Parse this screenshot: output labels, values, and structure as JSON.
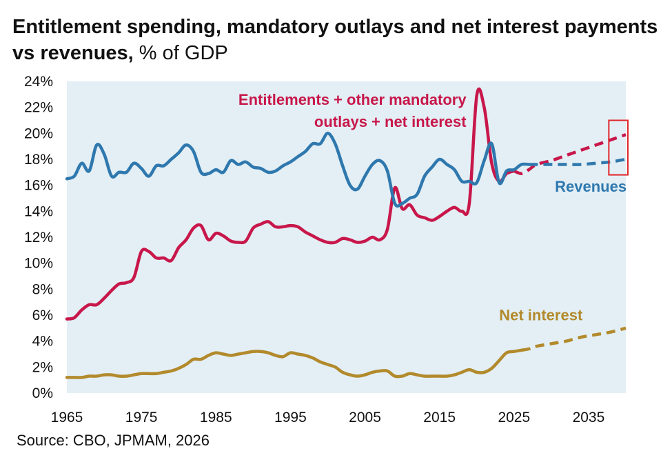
{
  "title": {
    "main": "Entitlement spending, mandatory outlays and net interest payments vs revenues,",
    "unit": "% of GDP"
  },
  "source": "Source: CBO, JPMAM, 2026",
  "colors": {
    "plot_bg": "#e3eff5",
    "mandatory": "#c8174a",
    "revenues": "#2f78ae",
    "net_interest": "#b28a2c",
    "highlight_box": "#e0262b"
  },
  "chart_data": {
    "type": "line",
    "xlim": [
      1965,
      2040
    ],
    "ylim": [
      0,
      24
    ],
    "x_ticks": [
      "1965",
      "1975",
      "1985",
      "1995",
      "2005",
      "2015",
      "2025",
      "2035"
    ],
    "y_ticks": [
      "0%",
      "2%",
      "4%",
      "6%",
      "8%",
      "10%",
      "12%",
      "14%",
      "16%",
      "18%",
      "20%",
      "22%",
      "24%"
    ],
    "y_tick_values": [
      0,
      2,
      4,
      6,
      8,
      10,
      12,
      14,
      16,
      18,
      20,
      22,
      24
    ],
    "grid": false,
    "annotations": {
      "mandatory": [
        "Entitlements + other mandatory",
        "outlays + net interest"
      ],
      "revenues": "Revenues",
      "net_interest": "Net interest"
    },
    "highlight_box": {
      "x_range": [
        2038,
        2040
      ],
      "y_range": [
        16.8,
        21.0
      ]
    },
    "series": [
      {
        "key": "mandatory",
        "color": "#c8174a",
        "historical": [
          [
            1965,
            5.7
          ],
          [
            1966,
            5.8
          ],
          [
            1967,
            6.4
          ],
          [
            1968,
            6.8
          ],
          [
            1969,
            6.8
          ],
          [
            1970,
            7.3
          ],
          [
            1971,
            7.9
          ],
          [
            1972,
            8.4
          ],
          [
            1973,
            8.5
          ],
          [
            1974,
            8.9
          ],
          [
            1975,
            10.9
          ],
          [
            1976,
            10.9
          ],
          [
            1977,
            10.4
          ],
          [
            1978,
            10.4
          ],
          [
            1979,
            10.2
          ],
          [
            1980,
            11.2
          ],
          [
            1981,
            11.8
          ],
          [
            1982,
            12.7
          ],
          [
            1983,
            12.9
          ],
          [
            1984,
            11.8
          ],
          [
            1985,
            12.3
          ],
          [
            1986,
            12.1
          ],
          [
            1987,
            11.7
          ],
          [
            1988,
            11.6
          ],
          [
            1989,
            11.7
          ],
          [
            1990,
            12.7
          ],
          [
            1991,
            13.0
          ],
          [
            1992,
            13.2
          ],
          [
            1993,
            12.8
          ],
          [
            1994,
            12.8
          ],
          [
            1995,
            12.9
          ],
          [
            1996,
            12.8
          ],
          [
            1997,
            12.4
          ],
          [
            1998,
            12.1
          ],
          [
            1999,
            11.8
          ],
          [
            2000,
            11.6
          ],
          [
            2001,
            11.6
          ],
          [
            2002,
            11.9
          ],
          [
            2003,
            11.8
          ],
          [
            2004,
            11.6
          ],
          [
            2005,
            11.7
          ],
          [
            2006,
            12.0
          ],
          [
            2007,
            11.8
          ],
          [
            2008,
            12.6
          ],
          [
            2009,
            15.8
          ],
          [
            2010,
            14.2
          ],
          [
            2011,
            14.5
          ],
          [
            2012,
            13.7
          ],
          [
            2013,
            13.5
          ],
          [
            2014,
            13.3
          ],
          [
            2015,
            13.6
          ],
          [
            2016,
            14.0
          ],
          [
            2017,
            14.3
          ],
          [
            2018,
            14.0
          ],
          [
            2019,
            14.6
          ],
          [
            2020,
            22.9
          ],
          [
            2021,
            22.0
          ],
          [
            2022,
            17.7
          ],
          [
            2023,
            16.3
          ],
          [
            2024,
            16.9
          ],
          [
            2025,
            17.1
          ]
        ],
        "projected": [
          [
            2025,
            17.1
          ],
          [
            2026,
            16.9
          ],
          [
            2027,
            17.2
          ],
          [
            2028,
            17.6
          ],
          [
            2030,
            17.9
          ],
          [
            2032,
            18.3
          ],
          [
            2034,
            18.7
          ],
          [
            2036,
            19.1
          ],
          [
            2038,
            19.5
          ],
          [
            2040,
            19.9
          ]
        ]
      },
      {
        "key": "revenues",
        "color": "#2f78ae",
        "historical": [
          [
            1965,
            16.5
          ],
          [
            1966,
            16.7
          ],
          [
            1967,
            17.7
          ],
          [
            1968,
            17.1
          ],
          [
            1969,
            19.1
          ],
          [
            1970,
            18.4
          ],
          [
            1971,
            16.7
          ],
          [
            1972,
            17.0
          ],
          [
            1973,
            17.0
          ],
          [
            1974,
            17.7
          ],
          [
            1975,
            17.3
          ],
          [
            1976,
            16.7
          ],
          [
            1977,
            17.5
          ],
          [
            1978,
            17.5
          ],
          [
            1979,
            18.0
          ],
          [
            1980,
            18.5
          ],
          [
            1981,
            19.1
          ],
          [
            1982,
            18.6
          ],
          [
            1983,
            17.0
          ],
          [
            1984,
            16.9
          ],
          [
            1985,
            17.2
          ],
          [
            1986,
            17.0
          ],
          [
            1987,
            17.9
          ],
          [
            1988,
            17.6
          ],
          [
            1989,
            17.8
          ],
          [
            1990,
            17.4
          ],
          [
            1991,
            17.3
          ],
          [
            1992,
            17.0
          ],
          [
            1993,
            17.1
          ],
          [
            1994,
            17.5
          ],
          [
            1995,
            17.8
          ],
          [
            1996,
            18.2
          ],
          [
            1997,
            18.6
          ],
          [
            1998,
            19.2
          ],
          [
            1999,
            19.2
          ],
          [
            2000,
            20.0
          ],
          [
            2001,
            19.2
          ],
          [
            2002,
            17.5
          ],
          [
            2003,
            16.0
          ],
          [
            2004,
            15.7
          ],
          [
            2005,
            16.7
          ],
          [
            2006,
            17.6
          ],
          [
            2007,
            17.9
          ],
          [
            2008,
            17.1
          ],
          [
            2009,
            14.6
          ],
          [
            2010,
            14.6
          ],
          [
            2011,
            15.0
          ],
          [
            2012,
            15.3
          ],
          [
            2013,
            16.7
          ],
          [
            2014,
            17.4
          ],
          [
            2015,
            18.0
          ],
          [
            2016,
            17.6
          ],
          [
            2017,
            17.2
          ],
          [
            2018,
            16.3
          ],
          [
            2019,
            16.3
          ],
          [
            2020,
            16.2
          ],
          [
            2021,
            17.9
          ],
          [
            2022,
            19.2
          ],
          [
            2023,
            16.2
          ],
          [
            2024,
            17.1
          ],
          [
            2025,
            17.2
          ],
          [
            2026,
            17.6
          ],
          [
            2027,
            17.6
          ]
        ],
        "projected": [
          [
            2027,
            17.6
          ],
          [
            2028,
            17.6
          ],
          [
            2030,
            17.6
          ],
          [
            2032,
            17.6
          ],
          [
            2034,
            17.6
          ],
          [
            2036,
            17.7
          ],
          [
            2038,
            17.8
          ],
          [
            2040,
            18.0
          ]
        ]
      },
      {
        "key": "net_interest",
        "color": "#b28a2c",
        "historical": [
          [
            1965,
            1.2
          ],
          [
            1966,
            1.2
          ],
          [
            1967,
            1.2
          ],
          [
            1968,
            1.3
          ],
          [
            1969,
            1.3
          ],
          [
            1970,
            1.4
          ],
          [
            1971,
            1.4
          ],
          [
            1972,
            1.3
          ],
          [
            1973,
            1.3
          ],
          [
            1974,
            1.4
          ],
          [
            1975,
            1.5
          ],
          [
            1976,
            1.5
          ],
          [
            1977,
            1.5
          ],
          [
            1978,
            1.6
          ],
          [
            1979,
            1.7
          ],
          [
            1980,
            1.9
          ],
          [
            1981,
            2.2
          ],
          [
            1982,
            2.6
          ],
          [
            1983,
            2.6
          ],
          [
            1984,
            2.9
          ],
          [
            1985,
            3.1
          ],
          [
            1986,
            3.0
          ],
          [
            1987,
            2.9
          ],
          [
            1988,
            3.0
          ],
          [
            1989,
            3.1
          ],
          [
            1990,
            3.2
          ],
          [
            1991,
            3.2
          ],
          [
            1992,
            3.1
          ],
          [
            1993,
            2.9
          ],
          [
            1994,
            2.8
          ],
          [
            1995,
            3.1
          ],
          [
            1996,
            3.0
          ],
          [
            1997,
            2.9
          ],
          [
            1998,
            2.7
          ],
          [
            1999,
            2.4
          ],
          [
            2000,
            2.2
          ],
          [
            2001,
            2.0
          ],
          [
            2002,
            1.6
          ],
          [
            2003,
            1.4
          ],
          [
            2004,
            1.3
          ],
          [
            2005,
            1.4
          ],
          [
            2006,
            1.6
          ],
          [
            2007,
            1.7
          ],
          [
            2008,
            1.7
          ],
          [
            2009,
            1.3
          ],
          [
            2010,
            1.3
          ],
          [
            2011,
            1.5
          ],
          [
            2012,
            1.4
          ],
          [
            2013,
            1.3
          ],
          [
            2014,
            1.3
          ],
          [
            2015,
            1.3
          ],
          [
            2016,
            1.3
          ],
          [
            2017,
            1.4
          ],
          [
            2018,
            1.6
          ],
          [
            2019,
            1.8
          ],
          [
            2020,
            1.6
          ],
          [
            2021,
            1.6
          ],
          [
            2022,
            1.9
          ],
          [
            2023,
            2.5
          ],
          [
            2024,
            3.1
          ],
          [
            2025,
            3.2
          ],
          [
            2026,
            3.3
          ]
        ],
        "projected": [
          [
            2026,
            3.3
          ],
          [
            2027,
            3.4
          ],
          [
            2028,
            3.6
          ],
          [
            2030,
            3.8
          ],
          [
            2032,
            4.0
          ],
          [
            2034,
            4.3
          ],
          [
            2036,
            4.5
          ],
          [
            2038,
            4.7
          ],
          [
            2040,
            5.0
          ]
        ]
      }
    ]
  }
}
